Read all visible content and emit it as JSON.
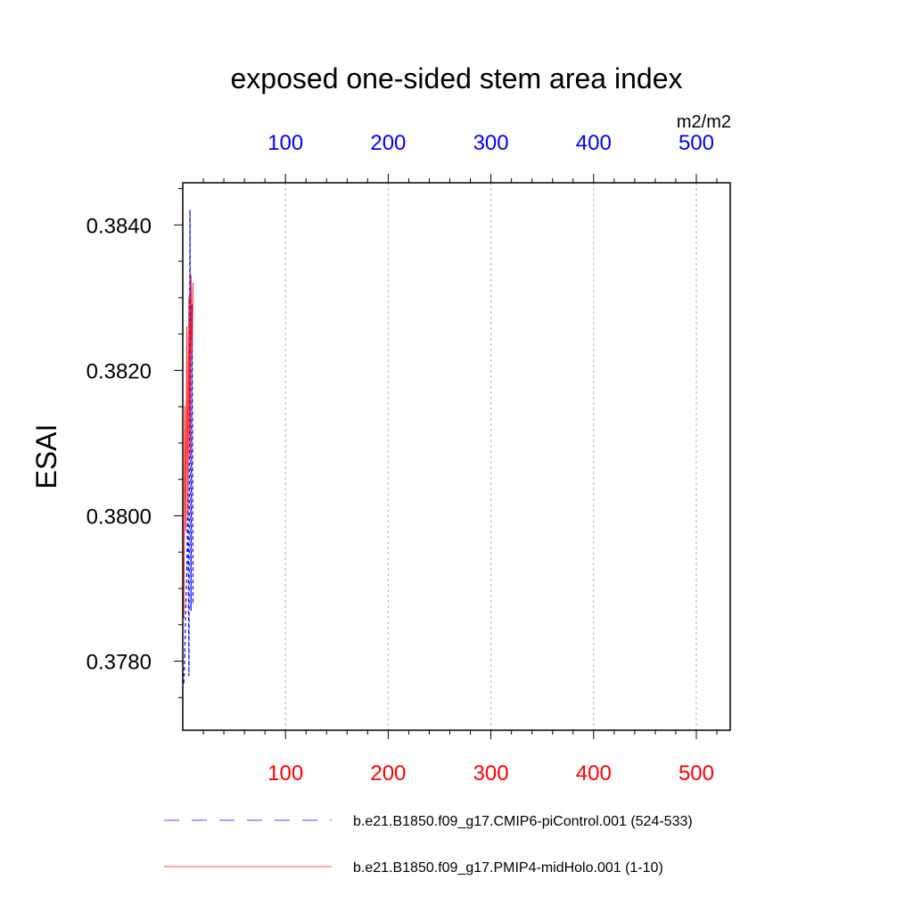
{
  "chart_data": {
    "type": "line",
    "title": "exposed one-sided stem area index",
    "units": "m2/m2",
    "ylabel": "ESAI",
    "xlabel": "",
    "xlim": [
      0,
      533
    ],
    "ylim": [
      0.37705,
      0.38458
    ],
    "y_ticks": [
      "0.3780",
      "0.3800",
      "0.3820",
      "0.3840"
    ],
    "y_tick_values": [
      0.378,
      0.38,
      0.382,
      0.384
    ],
    "x_top_ticks": [
      "100",
      "200",
      "300",
      "400",
      "500"
    ],
    "x_bottom_ticks": [
      "100",
      "200",
      "300",
      "400",
      "500"
    ],
    "x_tick_values": [
      100,
      200,
      300,
      400,
      500
    ],
    "x_top_color": "#0000ff",
    "x_bottom_color": "#ff0000",
    "grid": "vertical dashed",
    "legend_placement": "bottom",
    "series": [
      {
        "name": "b.e21.B1850.f09_g17.CMIP6-piControl.001 (524-533)",
        "color": "#0000ff",
        "dash": "dashed",
        "x": [
          1,
          2,
          3,
          4,
          5,
          6,
          7,
          8,
          9,
          10
        ],
        "values": [
          0.3777,
          0.3781,
          0.3788,
          0.3793,
          0.3803,
          0.3778,
          0.3842,
          0.3787,
          0.3829,
          0.3788
        ]
      },
      {
        "name": "b.e21.B1850.f09_g17.PMIP4-midHolo.001 (1-10)",
        "color": "#ff0000",
        "dash": "solid",
        "x": [
          1,
          2,
          3,
          4,
          5,
          6,
          7,
          8,
          9,
          10
        ],
        "values": [
          0.3786,
          0.3815,
          0.3798,
          0.3826,
          0.38,
          0.383,
          0.3808,
          0.3833,
          0.3822,
          0.3832
        ]
      }
    ]
  }
}
